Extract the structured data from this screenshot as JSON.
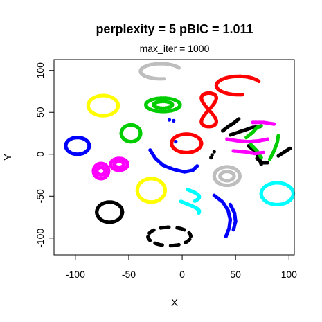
{
  "chart_data": {
    "type": "scatter",
    "title": "perplexity = 5 pBIC = 1.011",
    "subtitle": "max_iter = 1000",
    "xlabel": "X",
    "ylabel": "Y",
    "xlim": [
      -120,
      105
    ],
    "ylim": [
      -120,
      113
    ],
    "xticks": [
      -100,
      -50,
      0,
      50,
      100
    ],
    "xtick_labels": [
      "-100",
      "-50",
      "0",
      "50",
      "100"
    ],
    "yticks": [
      -100,
      -50,
      0,
      50,
      100
    ],
    "ytick_labels": [
      "-100",
      "-50",
      "0",
      "50",
      "100"
    ],
    "grid": false,
    "clusters": [
      {
        "color": "#000000",
        "shape": "ring",
        "cx": -68,
        "cy": -69,
        "rx": 12,
        "ry": 12
      },
      {
        "color": "#000000",
        "shape": "dashed-ring",
        "cx": -12,
        "cy": -98,
        "rx": 20,
        "ry": 11
      },
      {
        "color": "#000000",
        "shape": "path",
        "points": [
          [
            38,
            28
          ],
          [
            43,
            33
          ],
          [
            48,
            37
          ],
          [
            53,
            42
          ]
        ]
      },
      {
        "color": "#000000",
        "shape": "path",
        "points": [
          [
            45,
            23
          ],
          [
            52,
            26
          ],
          [
            59,
            29
          ],
          [
            66,
            32
          ],
          [
            73,
            33
          ]
        ]
      },
      {
        "color": "#000000",
        "shape": "path",
        "points": [
          [
            62,
            10
          ],
          [
            68,
            4
          ],
          [
            72,
            -4
          ],
          [
            74,
            -12
          ]
        ]
      },
      {
        "color": "#000000",
        "shape": "path",
        "points": [
          [
            70,
            -5
          ],
          [
            75,
            -10
          ],
          [
            80,
            -10
          ]
        ]
      },
      {
        "color": "#000000",
        "shape": "path",
        "points": [
          [
            90,
            -2
          ],
          [
            96,
            3
          ],
          [
            101,
            7
          ]
        ]
      },
      {
        "color": "#000000",
        "shape": "points",
        "points": [
          [
            30,
            3
          ],
          [
            28,
            -1
          ],
          [
            27,
            -4
          ]
        ]
      },
      {
        "color": "#ff0000",
        "shape": "ring",
        "cx": 4,
        "cy": 13,
        "rx": 14,
        "ry": 11
      },
      {
        "color": "#ff0000",
        "shape": "figure8",
        "cx": 25,
        "cy": 53,
        "rx": 7,
        "ry": 20
      },
      {
        "color": "#ff0000",
        "shape": "crescent",
        "cx": 53,
        "cy": 82,
        "rx": 21,
        "ry": 11
      },
      {
        "color": "#0000ff",
        "shape": "ring",
        "cx": -98,
        "cy": 10,
        "rx": 11,
        "ry": 10
      },
      {
        "color": "#0000ff",
        "shape": "path",
        "points": [
          [
            -30,
            5
          ],
          [
            -25,
            -5
          ],
          [
            -18,
            -13
          ],
          [
            -8,
            -18
          ],
          [
            2,
            -21
          ],
          [
            10,
            -19
          ],
          [
            14,
            -14
          ]
        ]
      },
      {
        "color": "#0000ff",
        "shape": "path",
        "points": [
          [
            30,
            -49
          ],
          [
            38,
            -57
          ],
          [
            43,
            -67
          ],
          [
            45,
            -78
          ],
          [
            44,
            -88
          ],
          [
            41,
            -98
          ]
        ]
      },
      {
        "color": "#0000ff",
        "shape": "path",
        "points": [
          [
            45,
            -60
          ],
          [
            49,
            -70
          ],
          [
            50,
            -80
          ],
          [
            48,
            -90
          ]
        ]
      },
      {
        "color": "#0000ff",
        "shape": "points",
        "points": [
          [
            -12,
            41
          ],
          [
            -8,
            40
          ],
          [
            -6,
            15
          ]
        ]
      },
      {
        "color": "#00cd00",
        "shape": "ring",
        "cx": -48,
        "cy": 25,
        "rx": 9,
        "ry": 10
      },
      {
        "color": "#00cd00",
        "shape": "blob",
        "cx": -18,
        "cy": 59,
        "rx": 16,
        "ry": 8
      },
      {
        "color": "#00cd00",
        "shape": "path",
        "points": [
          [
            60,
            20
          ],
          [
            66,
            26
          ],
          [
            70,
            32
          ],
          [
            74,
            34
          ]
        ]
      },
      {
        "color": "#00cd00",
        "shape": "path",
        "points": [
          [
            64,
            12
          ],
          [
            70,
            4
          ],
          [
            74,
            -4
          ]
        ]
      },
      {
        "color": "#00cd00",
        "shape": "path",
        "points": [
          [
            82,
            -6
          ],
          [
            86,
            4
          ],
          [
            89,
            14
          ],
          [
            90,
            22
          ]
        ]
      },
      {
        "color": "#bebebe",
        "shape": "crescent",
        "cx": -20,
        "cy": 99,
        "rx": 19,
        "ry": 9
      },
      {
        "color": "#bebebe",
        "shape": "blob",
        "cx": 42,
        "cy": -26,
        "rx": 12,
        "ry": 11
      },
      {
        "color": "#00ffff",
        "shape": "ring",
        "cx": 89,
        "cy": -47,
        "rx": 15,
        "ry": 13
      },
      {
        "color": "#00ffff",
        "shape": "s-curve",
        "cx": 5,
        "cy": -56,
        "rx": 11,
        "ry": 14
      },
      {
        "color": "#ffff00",
        "shape": "ring",
        "cx": -74,
        "cy": 58,
        "rx": 14,
        "ry": 12
      },
      {
        "color": "#ffff00",
        "shape": "ring",
        "cx": -29,
        "cy": -43,
        "rx": 13,
        "ry": 14
      },
      {
        "color": "#ff00ff",
        "shape": "blob",
        "cx": -76,
        "cy": -20,
        "rx": 7,
        "ry": 9
      },
      {
        "color": "#ff00ff",
        "shape": "blob",
        "cx": -59,
        "cy": -12,
        "rx": 8,
        "ry": 7
      },
      {
        "color": "#ff00ff",
        "shape": "path",
        "points": [
          [
            42,
            18
          ],
          [
            52,
            16
          ],
          [
            62,
            15
          ],
          [
            72,
            16
          ],
          [
            80,
            18
          ]
        ]
      },
      {
        "color": "#ff00ff",
        "shape": "path",
        "points": [
          [
            48,
            4
          ],
          [
            58,
            3
          ],
          [
            68,
            1
          ],
          [
            76,
            2
          ]
        ]
      },
      {
        "color": "#ff00ff",
        "shape": "path",
        "points": [
          [
            66,
            38
          ],
          [
            76,
            38
          ],
          [
            86,
            36
          ]
        ]
      }
    ]
  }
}
